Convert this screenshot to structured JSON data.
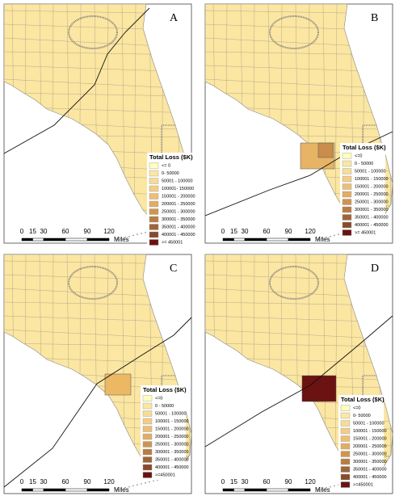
{
  "panels": [
    {
      "label": "A",
      "legend": {
        "title": "Total Loss ($K)",
        "items": [
          "<= 0",
          "0- 50000",
          "50001 - 100000",
          "100001- 150000",
          "150001 - 200000",
          "200001 - 250000",
          "250001 - 300000",
          "300001 - 350000",
          "350001 - 400000",
          "400001 - 450000",
          ">= 450001"
        ]
      },
      "scale": {
        "ticks": [
          0,
          15,
          30,
          60,
          90,
          120
        ],
        "unit": "Miles"
      }
    },
    {
      "label": "B",
      "legend": {
        "title": "Total Loss ($K)",
        "items": [
          "<=0",
          "0 - 50000",
          "50001 - 100000",
          "100001 - 150000",
          "150001 - 200000",
          "200001 - 250000",
          "250001 - 300000",
          "300001 - 350000",
          "350001 - 400000",
          "400001 - 450000",
          ">= 450001"
        ]
      },
      "scale": {
        "ticks": [
          0,
          15,
          30,
          60,
          90,
          120
        ],
        "unit": "Miles"
      }
    },
    {
      "label": "C",
      "legend": {
        "title": "Total Loss ($K)",
        "items": [
          "<=0",
          "0 - 50000",
          "50001 - 100000",
          "100001 - 150000",
          "150001 - 200000",
          "200001 - 250000",
          "250001 - 300000",
          "300001 - 350000",
          "350001 - 400000",
          "400001 - 450000",
          ">=450001"
        ]
      },
      "scale": {
        "ticks": [
          0,
          15,
          30,
          60,
          90,
          120
        ],
        "unit": "Miles"
      }
    },
    {
      "label": "D",
      "legend": {
        "title": "Total Loss ($K)",
        "items": [
          "<=0",
          "0- 50000",
          "50001 - 100000",
          "100001 - 150000",
          "150001 - 200000",
          "200001 - 250000",
          "250001 - 300000",
          "300001 - 350000",
          "350001 - 400000",
          "400001 - 450000",
          ">=450001"
        ]
      },
      "scale": {
        "ticks": [
          0,
          15,
          30,
          60,
          90,
          120
        ],
        "unit": "Miles"
      }
    }
  ]
}
